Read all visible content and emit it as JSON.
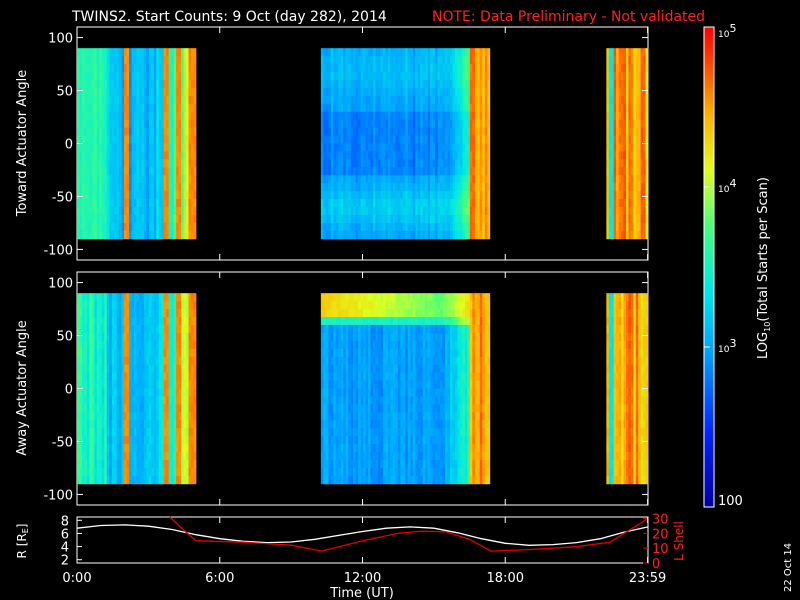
{
  "title": {
    "main": "TWINS2. Start Counts:  9 Oct (day 282), 2014",
    "note": "NOTE: Data Preliminary - Not validated"
  },
  "chart_data": [
    {
      "type": "heatmap",
      "name": "toward",
      "ylabel": "Toward Actuator Angle",
      "ylim": [
        -110,
        110
      ],
      "yticks": [
        "100",
        "50",
        "0",
        "-50",
        "-100"
      ],
      "ytick_values": [
        100,
        50,
        0,
        -50,
        -100
      ],
      "xlim_hours": [
        0,
        24
      ],
      "data_range": [
        -90,
        90
      ],
      "segments": [
        {
          "start_hour": 0.0,
          "end_hour": 5.0
        },
        {
          "start_hour": 10.25,
          "end_hour": 17.35
        },
        {
          "start_hour": 22.25,
          "end_hour": 24.0
        }
      ]
    },
    {
      "type": "heatmap",
      "name": "away",
      "ylabel": "Away Actuator Angle",
      "ylim": [
        -110,
        110
      ],
      "yticks": [
        "100",
        "50",
        "0",
        "-50",
        "-100"
      ],
      "ytick_values": [
        100,
        50,
        0,
        -50,
        -100
      ],
      "xlim_hours": [
        0,
        24
      ],
      "data_range": [
        -90,
        90
      ],
      "segments": [
        {
          "start_hour": 0.0,
          "end_hour": 5.0
        },
        {
          "start_hour": 10.25,
          "end_hour": 17.35
        },
        {
          "start_hour": 22.25,
          "end_hour": 24.0
        }
      ]
    },
    {
      "type": "line",
      "name": "orbit",
      "ylabel_left": "R [R",
      "ylabel_left_sub": "E",
      "ylabel_left_end": "]",
      "ylabel_right": "L Shell",
      "yticks_left": [
        "8",
        "6",
        "4",
        "2"
      ],
      "ytick_values_left": [
        8,
        6,
        4,
        2
      ],
      "ylim_left": [
        1.5,
        8.5
      ],
      "yticks_right": [
        "30",
        "20",
        "10",
        "0"
      ],
      "ytick_values_right": [
        30,
        20,
        10,
        0
      ],
      "ylim_right": [
        0,
        31
      ],
      "series": [
        {
          "name": "R",
          "color": "#ffffff",
          "x": [
            0,
            1,
            2,
            3,
            4,
            5,
            6,
            7,
            8,
            9,
            10,
            11,
            12,
            13,
            14,
            15,
            16,
            17,
            18,
            19,
            20,
            21,
            22,
            23,
            24
          ],
          "y": [
            6.8,
            7.2,
            7.3,
            7.1,
            6.6,
            5.8,
            5.2,
            4.8,
            4.6,
            4.7,
            5.1,
            5.7,
            6.3,
            6.8,
            7.0,
            6.8,
            6.1,
            5.2,
            4.5,
            4.2,
            4.3,
            4.6,
            5.2,
            6.2,
            7.0
          ]
        },
        {
          "name": "L Shell",
          "color": "#e00000",
          "x": [
            3.9,
            4.5,
            5.0,
            7.0,
            9.0,
            10.3,
            12.0,
            13.5,
            14.5,
            15.5,
            16.5,
            17.4,
            19.0,
            21.0,
            22.4,
            23.0,
            23.5,
            24.0
          ],
          "y": [
            31,
            22,
            15,
            14,
            12,
            8,
            15,
            20,
            21.5,
            21,
            16,
            8,
            9,
            11,
            14,
            20,
            25,
            30
          ]
        }
      ]
    }
  ],
  "xaxis": {
    "label": "Time (UT)",
    "ticks": [
      "0:00",
      "6:00",
      "12:00",
      "18:00",
      "23:59"
    ],
    "tick_hours": [
      0,
      6,
      12,
      18,
      23.983
    ]
  },
  "colorbar": {
    "label_pre": "LOG",
    "label_sub": "10",
    "label_post": "(Total Starts per Scan)",
    "ticks": [
      {
        "label": "10",
        "exp": "5",
        "log": 5
      },
      {
        "label": "10",
        "exp": "4",
        "log": 4
      },
      {
        "label": "10",
        "exp": "3",
        "log": 3
      },
      {
        "label": "100",
        "exp": "",
        "log": 2
      }
    ],
    "range_log": [
      2,
      5
    ]
  },
  "date_stamp": "22 Oct 14"
}
